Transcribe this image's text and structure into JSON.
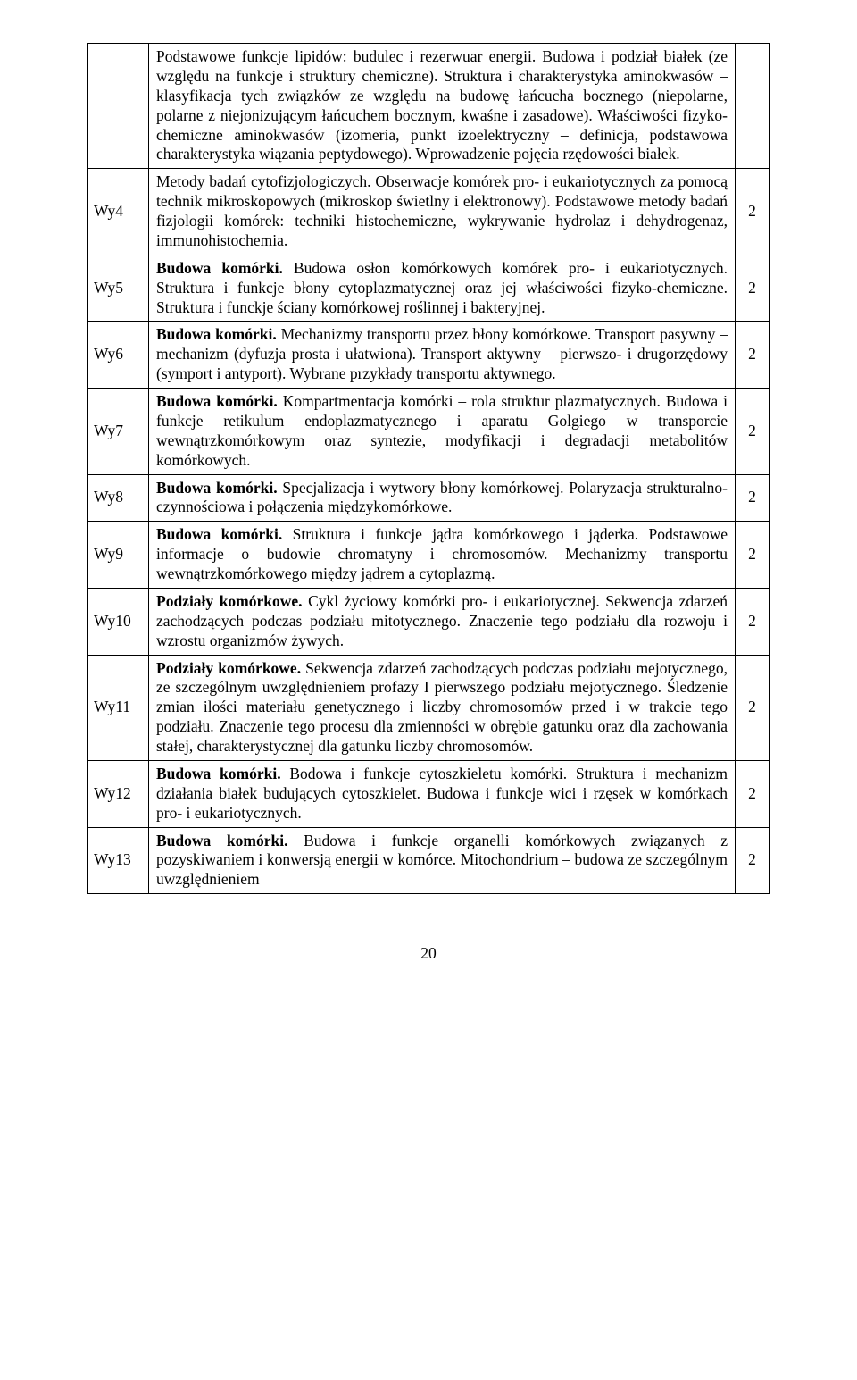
{
  "page_number": "20",
  "rows": [
    {
      "label": "",
      "count": "",
      "html": "Podstawowe funkcje lipidów: budulec i rezerwuar energii. Budowa i podział białek (ze względu na funkcje i struktury chemiczne). Struktura i charakterystyka aminokwasów – klasyfikacja tych związków ze względu na budowę łańcucha bocznego (niepolarne, polarne z niejonizującym łańcuchem bocznym, kwaśne i zasadowe). Właściwości fizyko-chemiczne aminokwasów (izomeria, punkt izoelektryczny – definicja, podstawowa charakterystyka wiązania peptydowego). Wprowadzenie pojęcia rzędowości białek."
    },
    {
      "label": "Wy4",
      "count": "2",
      "html": "Metody badań cytofizjologiczych. Obserwacje komórek pro- i eukariotycznych za pomocą technik mikroskopowych (mikroskop świetlny i elektronowy). Podstawowe metody badań fizjologii komórek: techniki histochemiczne, wykrywanie hydrolaz i dehydrogenaz, immunohistochemia."
    },
    {
      "label": "Wy5",
      "count": "2",
      "html": "<span class=\"b\">Budowa komórki.</span> Budowa osłon komórkowych komórek pro- i eukariotycznych. Struktura i funkcje błony cytoplazmatycznej oraz jej właściwości fizyko-chemiczne. Struktura i funckje ściany komórkowej roślinnej i bakteryjnej."
    },
    {
      "label": "Wy6",
      "count": "2",
      "html": "<span class=\"b\">Budowa komórki.</span> Mechanizmy transportu przez błony komórkowe. Transport pasywny – mechanizm (dyfuzja prosta i ułatwiona). Transport aktywny – pierwszo- i drugorzędowy (symport i antyport). Wybrane przykłady transportu aktywnego."
    },
    {
      "label": "Wy7",
      "count": "2",
      "html": "<span class=\"b\">Budowa komórki.</span> Kompartmentacja komórki – rola struktur plazmatycznych. Budowa i funkcje retikulum endoplazmatycznego i aparatu Golgiego w transporcie wewnątrzkomórkowym oraz syntezie, modyfikacji i degradacji metabolitów komórkowych."
    },
    {
      "label": "Wy8",
      "count": "2",
      "html": "<span class=\"b\">Budowa komórki.</span> Specjalizacja i wytwory błony komórkowej. Polaryzacja strukturalno-czynnościowa i połączenia międzykomórkowe."
    },
    {
      "label": "Wy9",
      "count": "2",
      "html": "<span class=\"b\">Budowa komórki.</span> Struktura i funkcje jądra komórkowego i jąderka. Podstawowe informacje o budowie chromatyny i chromosomów. Mechanizmy transportu wewnątrzkomórkowego między jądrem a cytoplazmą."
    },
    {
      "label": "Wy10",
      "count": "2",
      "html": "<span class=\"b\">Podziały komórkowe.</span> Cykl życiowy komórki pro- i eukariotycznej. Sekwencja zdarzeń zachodzących podczas podziału mitotycznego. Znaczenie tego podziału dla rozwoju i wzrostu organizmów żywych."
    },
    {
      "label": "Wy11",
      "count": "2",
      "html": "<span class=\"b\">Podziały komórkowe.</span> Sekwencja zdarzeń zachodzących podczas podziału mejotycznego, ze szczególnym uwzględnieniem profazy I pierwszego podziału mejotycznego. Śledzenie zmian ilości materiału genetycznego i liczby chromosomów przed i w trakcie tego podziału. Znaczenie tego procesu dla zmienności w obrębie gatunku oraz dla zachowania stałej, charakterystycznej dla gatunku liczby chromosomów."
    },
    {
      "label": "Wy12",
      "count": "2",
      "html": "<span class=\"b\">Budowa komórki.</span> Bodowa i funkcje cytoszkieletu komórki. Struktura i mechanizm działania białek budujących cytoszkielet. Budowa i funkcje wici i rzęsek w komórkach pro- i eukariotycznych."
    },
    {
      "label": "Wy13",
      "count": "2",
      "html": "<span class=\"b\">Budowa komórki.</span> Budowa i funkcje organelli komórkowych związanych z pozyskiwaniem i konwersją energii w komórce. Mitochondrium  – budowa ze szczególnym uwzględnieniem"
    }
  ]
}
